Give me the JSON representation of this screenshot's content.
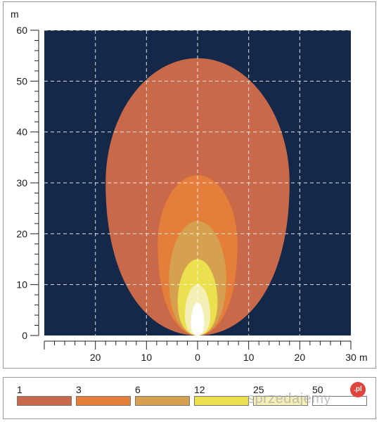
{
  "chart_data": {
    "type": "area",
    "x_unit": "m",
    "y_unit": "m",
    "x_ticks": [
      {
        "value": -20,
        "label": "20"
      },
      {
        "value": -10,
        "label": "10"
      },
      {
        "value": 0,
        "label": "0"
      },
      {
        "value": 10,
        "label": "10"
      },
      {
        "value": 20,
        "label": "20"
      },
      {
        "value": 30,
        "label": "30"
      }
    ],
    "y_ticks": [
      0,
      10,
      20,
      30,
      40,
      50,
      60
    ],
    "xlim": [
      -30,
      30
    ],
    "ylim": [
      0,
      60
    ],
    "grid": true,
    "background_color": "#14294a",
    "isolux_contours": [
      {
        "level": "1",
        "color": "#c8694a",
        "half_width": 18,
        "peak_y": 30,
        "max_y": 54.5
      },
      {
        "level": "3",
        "color": "#e57e3a",
        "half_width": 7.8,
        "peak_y": 18,
        "max_y": 31.5
      },
      {
        "level": "6",
        "color": "#d6a14e",
        "half_width": 5.6,
        "peak_y": 11,
        "max_y": 22.5
      },
      {
        "level": "12",
        "color": "#ebe04e",
        "half_width": 3.9,
        "peak_y": 6.5,
        "max_y": 15
      },
      {
        "level": "25",
        "color": "#f4efb4",
        "half_width": 2.5,
        "peak_y": 3.8,
        "max_y": 10
      },
      {
        "level": "50",
        "color": "#ffffff",
        "half_width": 1.3,
        "peak_y": 2.2,
        "max_y": 6.5
      }
    ]
  },
  "legend": {
    "items": [
      {
        "label": "1",
        "color": "#c8694a"
      },
      {
        "label": "3",
        "color": "#e57e3a"
      },
      {
        "label": "6",
        "color": "#d6a14e"
      },
      {
        "label": "12",
        "color": "#ebe04e"
      },
      {
        "label": "25",
        "color": "#f4efb4"
      },
      {
        "label": "50",
        "color": "#ffffff"
      }
    ]
  },
  "watermark": {
    "text": "sprzedajemy",
    "badge": ".pl"
  }
}
